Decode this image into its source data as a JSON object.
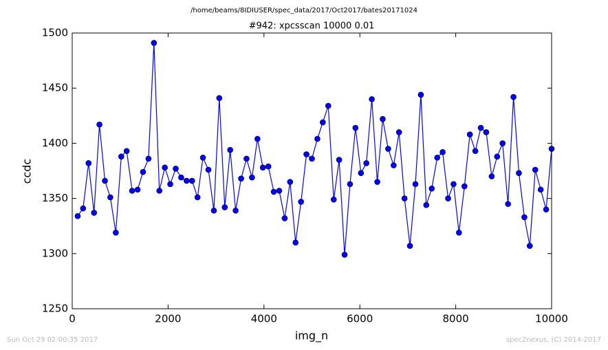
{
  "header": "/home/beams/8IDIUSER/spec_data/2017/Oct2017/bates20171024",
  "footer_left": "Sun Oct 29 02:00:35 2017",
  "footer_right": "spec2nexus, (C) 2014-2017",
  "chart_data": {
    "type": "line",
    "title": "#942: xpcsscan 10000 0.01",
    "x_label": "img_n",
    "y_label": "ccdc",
    "color": "#0000ff",
    "x": [
      114,
      227,
      341,
      455,
      568,
      682,
      795,
      909,
      1023,
      1136,
      1250,
      1364,
      1477,
      1591,
      1705,
      1818,
      1932,
      2045,
      2159,
      2273,
      2386,
      2500,
      2614,
      2727,
      2841,
      2955,
      3068,
      3182,
      3295,
      3409,
      3523,
      3636,
      3750,
      3864,
      3977,
      4091,
      4205,
      4318,
      4432,
      4545,
      4659,
      4773,
      4886,
      5000,
      5114,
      5227,
      5341,
      5455,
      5568,
      5682,
      5795,
      5909,
      6023,
      6136,
      6250,
      6364,
      6477,
      6591,
      6705,
      6818,
      6932,
      7045,
      7159,
      7273,
      7386,
      7500,
      7614,
      7727,
      7841,
      7955,
      8068,
      8182,
      8295,
      8409,
      8523,
      8636,
      8750,
      8864,
      8977,
      9091,
      9205,
      9318,
      9432,
      9545,
      9659,
      9773,
      9886,
      10000
    ],
    "values": [
      1334,
      1341,
      1382,
      1337,
      1417,
      1366,
      1351,
      1319,
      1388,
      1393,
      1357,
      1358,
      1374,
      1386,
      1491,
      1357,
      1378,
      1363,
      1377,
      1369,
      1366,
      1366,
      1351,
      1387,
      1376,
      1339,
      1441,
      1342,
      1394,
      1339,
      1368,
      1386,
      1369,
      1404,
      1378,
      1379,
      1356,
      1357,
      1332,
      1365,
      1310,
      1347,
      1390,
      1386,
      1404,
      1419,
      1434,
      1349,
      1385,
      1299,
      1363,
      1414,
      1373,
      1382,
      1440,
      1365,
      1422,
      1395,
      1380,
      1410,
      1350,
      1307,
      1363,
      1444,
      1344,
      1359,
      1387,
      1392,
      1350,
      1363,
      1319,
      1361,
      1408,
      1393,
      1414,
      1410,
      1370,
      1388,
      1400,
      1345,
      1442,
      1373,
      1333,
      1307,
      1376,
      1358,
      1340,
      1395
    ],
    "xlim": [
      0,
      10000
    ],
    "xticks": [
      0,
      2000,
      4000,
      6000,
      8000,
      10000
    ],
    "ylim": [
      1250,
      1500
    ],
    "yticks": [
      1250,
      1300,
      1350,
      1400,
      1450,
      1500
    ]
  }
}
